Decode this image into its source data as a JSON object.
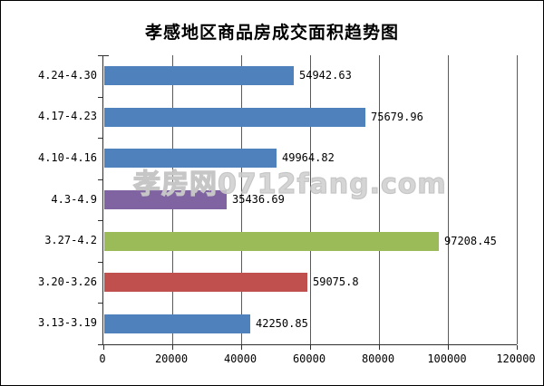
{
  "title": "孝感地区商品房成交面积趋势图",
  "watermark": "孝房网0712fang.com",
  "colors": {
    "bar_blue": "#4F81BD",
    "bar_purple": "#8064A2",
    "bar_green": "#9BBB59",
    "bar_red": "#C0504D",
    "gridline": "#5a5a5a",
    "axis": "#2f2f2f"
  },
  "chart_data": {
    "type": "bar",
    "orientation": "horizontal",
    "title": "孝感地区商品房成交面积趋势图",
    "categories": [
      "4.24-4.30",
      "4.17-4.23",
      "4.10-4.16",
      "4.3-4.9",
      "3.27-4.2",
      "3.20-3.26",
      "3.13-3.19"
    ],
    "values": [
      54942.63,
      75679.96,
      49964.82,
      35436.69,
      97208.45,
      59075.8,
      42250.85
    ],
    "value_labels": [
      "54942.63",
      "75679.96",
      "49964.82",
      "35436.69",
      "97208.45",
      "59075.8",
      "42250.85"
    ],
    "bar_colors": [
      "#4F81BD",
      "#4F81BD",
      "#4F81BD",
      "#8064A2",
      "#9BBB59",
      "#C0504D",
      "#4F81BD"
    ],
    "xlabel": "",
    "ylabel": "",
    "xlim": [
      0,
      120000
    ],
    "x_ticks": [
      "0",
      "20000",
      "40000",
      "60000",
      "80000",
      "100000",
      "120000"
    ],
    "x_tick_values": [
      0,
      20000,
      40000,
      60000,
      80000,
      100000,
      120000
    ],
    "grid": true,
    "legend": "none"
  }
}
